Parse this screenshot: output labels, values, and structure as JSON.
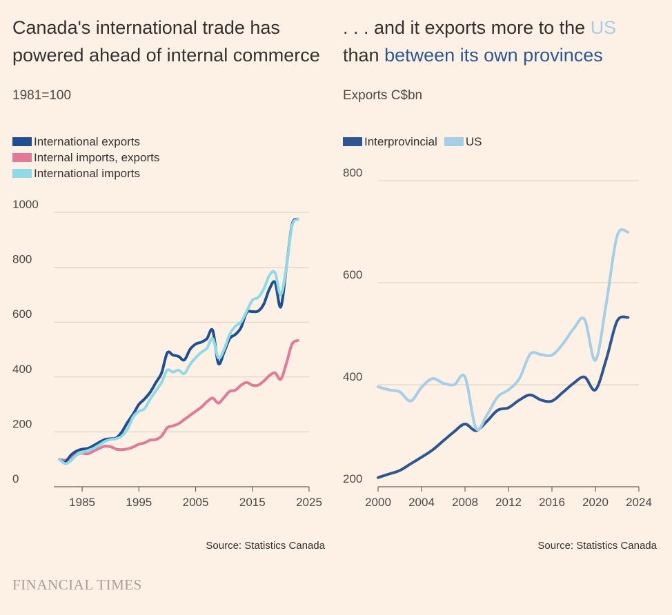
{
  "branding": {
    "logo_text": "FINANCIAL TIMES"
  },
  "charts": {
    "left": {
      "title_line1": "Canada's international trade has",
      "title_line2": "powered ahead of internal commerce",
      "subtitle": "1981=100",
      "source": "Source: Statistics Canada"
    },
    "right": {
      "title_part1": ". . . and it exports more to the ",
      "title_us": "US",
      "title_part2": "than ",
      "title_prov": "between its own provinces",
      "subtitle": "Exports C$bn",
      "source": "Source: Statistics Canada"
    }
  },
  "chart_data": [
    {
      "type": "line",
      "title": "Canada's international trade has powered ahead of internal commerce",
      "ylabel": "1981=100",
      "xlim": [
        1980,
        2025
      ],
      "ylim": [
        0,
        1000
      ],
      "x_ticks": [
        1985,
        1995,
        2005,
        2015,
        2025
      ],
      "y_ticks": [
        0,
        200,
        400,
        600,
        800,
        1000
      ],
      "grid": true,
      "legend": "top-left",
      "x": [
        1981,
        1982,
        1983,
        1984,
        1985,
        1986,
        1987,
        1988,
        1989,
        1990,
        1991,
        1992,
        1993,
        1994,
        1995,
        1996,
        1997,
        1998,
        1999,
        2000,
        2001,
        2002,
        2003,
        2004,
        2005,
        2006,
        2007,
        2008,
        2009,
        2010,
        2011,
        2012,
        2013,
        2014,
        2015,
        2016,
        2017,
        2018,
        2019,
        2020,
        2021,
        2022,
        2023
      ],
      "series": [
        {
          "name": "International exports",
          "color": "#1d4f91",
          "values": [
            100,
            90,
            115,
            130,
            137,
            140,
            150,
            162,
            172,
            175,
            178,
            200,
            235,
            265,
            300,
            320,
            345,
            380,
            415,
            488,
            480,
            475,
            462,
            500,
            520,
            527,
            540,
            570,
            450,
            490,
            540,
            555,
            580,
            635,
            638,
            640,
            665,
            720,
            745,
            655,
            800,
            955,
            975
          ]
        },
        {
          "name": "Internal imports, exports",
          "color": "#e07a96",
          "values": [
            100,
            97,
            108,
            118,
            122,
            120,
            130,
            140,
            148,
            146,
            137,
            135,
            138,
            145,
            155,
            160,
            170,
            172,
            185,
            215,
            222,
            230,
            245,
            260,
            275,
            290,
            310,
            323,
            305,
            325,
            348,
            352,
            370,
            380,
            370,
            370,
            385,
            405,
            415,
            392,
            450,
            520,
            533
          ]
        },
        {
          "name": "International imports",
          "color": "#8fdae6",
          "values": [
            100,
            84,
            95,
            115,
            125,
            132,
            140,
            152,
            165,
            172,
            175,
            185,
            210,
            255,
            275,
            285,
            320,
            350,
            380,
            425,
            418,
            425,
            412,
            445,
            470,
            490,
            505,
            540,
            470,
            500,
            555,
            585,
            600,
            640,
            680,
            690,
            720,
            770,
            780,
            700,
            800,
            950,
            975
          ]
        }
      ]
    },
    {
      "type": "line",
      "title": "... and it exports more to the US than between its own provinces",
      "ylabel": "Exports C$bn",
      "xlim": [
        2000,
        2024
      ],
      "ylim": [
        200,
        800
      ],
      "x_ticks": [
        2000,
        2004,
        2008,
        2012,
        2016,
        2020,
        2024
      ],
      "y_ticks": [
        200,
        400,
        600,
        800
      ],
      "grid": true,
      "legend": "top-left",
      "x": [
        2000,
        2001,
        2002,
        2003,
        2004,
        2005,
        2006,
        2007,
        2008,
        2009,
        2010,
        2011,
        2012,
        2013,
        2014,
        2015,
        2016,
        2017,
        2018,
        2019,
        2020,
        2021,
        2022,
        2023
      ],
      "series": [
        {
          "name": "Interprovincial",
          "color": "#2c5592",
          "values": [
            218,
            225,
            232,
            245,
            258,
            272,
            290,
            308,
            323,
            310,
            328,
            350,
            355,
            370,
            380,
            370,
            368,
            385,
            403,
            415,
            390,
            450,
            525,
            532
          ]
        },
        {
          "name": "US",
          "color": "#a5cfe6",
          "values": [
            396,
            390,
            386,
            368,
            395,
            412,
            403,
            400,
            415,
            315,
            340,
            376,
            390,
            412,
            460,
            459,
            458,
            480,
            510,
            528,
            448,
            560,
            692,
            699
          ]
        }
      ]
    }
  ]
}
